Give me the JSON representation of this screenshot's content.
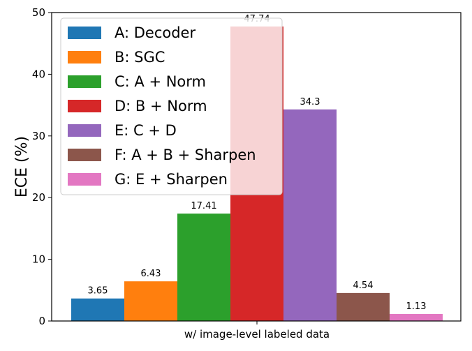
{
  "chart_data": {
    "type": "bar",
    "title": "",
    "xlabel": "",
    "ylabel": "ECE (%)",
    "ylim": [
      0,
      50
    ],
    "yticks": [
      0,
      10,
      20,
      30,
      40,
      50
    ],
    "categories": [
      "w/ image-level labeled data"
    ],
    "grid": false,
    "legend_position": "upper-left",
    "series": [
      {
        "name": "A: Decoder",
        "values": [
          3.65
        ],
        "label": "3.65",
        "color": "#1f77b4"
      },
      {
        "name": "B: SGC",
        "values": [
          6.43
        ],
        "label": "6.43",
        "color": "#ff7f0e"
      },
      {
        "name": "C: A + Norm",
        "values": [
          17.41
        ],
        "label": "17.41",
        "color": "#2ca02c"
      },
      {
        "name": "D: B + Norm",
        "values": [
          47.74
        ],
        "label": "47.74",
        "color": "#d62728"
      },
      {
        "name": "E: C + D",
        "values": [
          34.3
        ],
        "label": "34.3",
        "color": "#9467bd"
      },
      {
        "name": "F: A + B + Sharpen",
        "values": [
          4.54
        ],
        "label": "4.54",
        "color": "#8c564b"
      },
      {
        "name": "G: E + Sharpen",
        "values": [
          1.13
        ],
        "label": "1.13",
        "color": "#e377c2"
      }
    ]
  }
}
